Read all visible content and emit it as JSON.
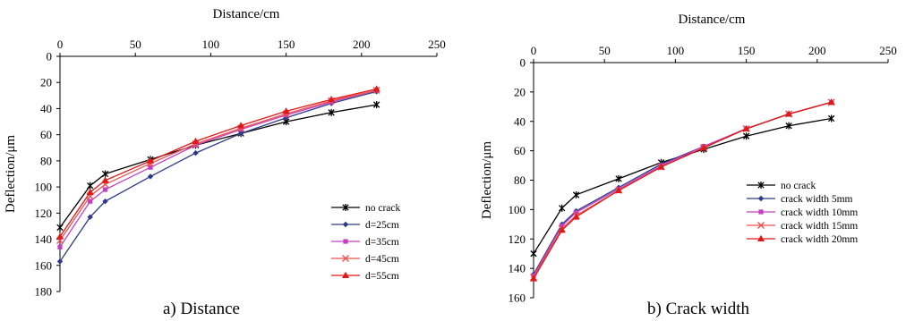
{
  "chart_data": [
    {
      "type": "line",
      "caption": "a) Distance",
      "xlabel": "Distance/cm",
      "ylabel": "Deflection/μm",
      "xlim": [
        0,
        250
      ],
      "ylim": [
        0,
        180
      ],
      "y_inverted": true,
      "x_axis_position": "top",
      "xticks": [
        0,
        50,
        100,
        150,
        200,
        250
      ],
      "yticks": [
        0,
        20,
        40,
        60,
        80,
        100,
        120,
        140,
        160,
        180
      ],
      "grid": false,
      "legend_position": "bottom-right",
      "series": [
        {
          "name": "no crack",
          "color": "#000000",
          "marker": "asterisk",
          "x": [
            0,
            20,
            30,
            60,
            90,
            120,
            150,
            180,
            210
          ],
          "y": [
            131,
            99,
            90,
            79,
            68,
            59,
            50,
            43,
            37
          ]
        },
        {
          "name": "d=25cm",
          "color": "#2e3a87",
          "marker": "diamond",
          "x": [
            0,
            20,
            30,
            60,
            90,
            120,
            150,
            180,
            210
          ],
          "y": [
            157,
            123,
            111,
            92,
            74,
            59,
            47,
            36,
            27
          ]
        },
        {
          "name": "d=35cm",
          "color": "#c040c0",
          "marker": "square",
          "x": [
            0,
            20,
            30,
            60,
            90,
            120,
            150,
            180,
            210
          ],
          "y": [
            146,
            111,
            102,
            85,
            68,
            56,
            45,
            35,
            26
          ]
        },
        {
          "name": "d=45cm",
          "color": "#f05050",
          "marker": "x",
          "x": [
            0,
            20,
            30,
            60,
            90,
            120,
            150,
            180,
            210
          ],
          "y": [
            141,
            107,
            98,
            82,
            67,
            55,
            44,
            34,
            26
          ]
        },
        {
          "name": "d=55cm",
          "color": "#e01818",
          "marker": "triangle",
          "x": [
            0,
            20,
            30,
            60,
            90,
            120,
            150,
            180,
            210
          ],
          "y": [
            138,
            104,
            95,
            80,
            65,
            53,
            42,
            33,
            25
          ]
        }
      ]
    },
    {
      "type": "line",
      "caption": "b) Crack width",
      "xlabel": "Distance/cm",
      "ylabel": "Deflection/μm",
      "xlim": [
        0,
        250
      ],
      "ylim": [
        0,
        160
      ],
      "y_inverted": true,
      "x_axis_position": "top",
      "xticks": [
        0,
        50,
        100,
        150,
        200,
        250
      ],
      "yticks": [
        0,
        20,
        40,
        60,
        80,
        100,
        120,
        140,
        160
      ],
      "grid": false,
      "legend_position": "bottom-right",
      "series": [
        {
          "name": "no crack",
          "color": "#000000",
          "marker": "asterisk",
          "x": [
            0,
            20,
            30,
            60,
            90,
            120,
            150,
            180,
            210
          ],
          "y": [
            130,
            99,
            90,
            79,
            68,
            59,
            50,
            43,
            38
          ]
        },
        {
          "name": "crack width 5mm",
          "color": "#2e3a87",
          "marker": "diamond",
          "x": [
            0,
            20,
            30,
            60,
            90,
            120,
            150,
            180,
            210
          ],
          "y": [
            144,
            110,
            101,
            85,
            69,
            57,
            45,
            35,
            27
          ]
        },
        {
          "name": "crack width 10mm",
          "color": "#c040c0",
          "marker": "square",
          "x": [
            0,
            20,
            30,
            60,
            90,
            120,
            150,
            180,
            210
          ],
          "y": [
            145,
            111,
            102,
            86,
            70,
            57,
            45,
            35,
            27
          ]
        },
        {
          "name": "crack width 15mm",
          "color": "#f05050",
          "marker": "x",
          "x": [
            0,
            20,
            30,
            60,
            90,
            120,
            150,
            180,
            210
          ],
          "y": [
            146,
            113,
            104,
            87,
            71,
            58,
            45,
            35,
            27
          ]
        },
        {
          "name": "crack width 20mm",
          "color": "#e01818",
          "marker": "triangle",
          "x": [
            0,
            20,
            30,
            60,
            90,
            120,
            150,
            180,
            210
          ],
          "y": [
            147,
            114,
            105,
            87,
            71,
            58,
            45,
            35,
            27
          ]
        }
      ]
    }
  ]
}
